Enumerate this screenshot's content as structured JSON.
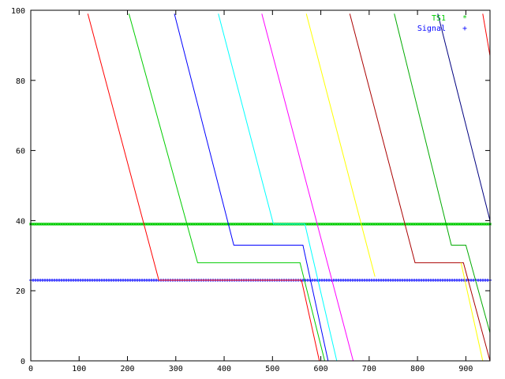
{
  "chart_data": {
    "type": "line",
    "title": "",
    "xlabel": "",
    "ylabel": "",
    "xlim": [
      0,
      950
    ],
    "ylim": [
      0,
      100
    ],
    "grid": false,
    "legend_position": "top-right",
    "x_ticks": [
      0,
      100,
      200,
      300,
      400,
      500,
      600,
      700,
      800,
      900
    ],
    "y_ticks": [
      0,
      20,
      40,
      60,
      80,
      100
    ],
    "x_tick_labels": [
      "0",
      "100",
      "200",
      "300",
      "400",
      "500",
      "600",
      "700",
      "800",
      "900"
    ],
    "y_tick_labels": [
      "0",
      "20",
      "40",
      "60",
      "80",
      "100"
    ],
    "legend": [
      {
        "label": "TS1",
        "marker": "*",
        "color": "#00cc00"
      },
      {
        "label": "Signal",
        "marker": "+",
        "color": "#0000ff"
      }
    ],
    "series": [
      {
        "name": "TS1",
        "style": "points",
        "marker": "*",
        "color": "#00cc00",
        "x": [
          0,
          950
        ],
        "y": [
          39,
          39
        ]
      },
      {
        "name": "Signal",
        "style": "points",
        "marker": "+",
        "color": "#0000ff",
        "x": [
          0,
          950
        ],
        "y": [
          23,
          23
        ]
      }
    ],
    "traces": [
      {
        "color": "#ff0000",
        "points": [
          [
            118,
            99
          ],
          [
            265,
            23
          ],
          [
            560,
            23
          ],
          [
            597,
            0
          ]
        ]
      },
      {
        "color": "#00cc00",
        "points": [
          [
            203,
            99
          ],
          [
            345,
            28
          ],
          [
            557,
            28
          ],
          [
            608,
            0
          ]
        ]
      },
      {
        "color": "#0000ff",
        "points": [
          [
            297,
            99
          ],
          [
            420,
            33
          ],
          [
            563,
            33
          ],
          [
            615,
            0
          ]
        ]
      },
      {
        "color": "#00ffff",
        "points": [
          [
            388,
            99
          ],
          [
            502,
            39
          ],
          [
            567,
            39
          ],
          [
            633,
            0
          ]
        ]
      },
      {
        "color": "#ff00ff",
        "points": [
          [
            478,
            99
          ],
          [
            667,
            0
          ]
        ]
      },
      {
        "color": "#ffff00",
        "points": [
          [
            570,
            99
          ],
          [
            712,
            24
          ]
        ]
      },
      {
        "color": "#aa0000",
        "points": [
          [
            660,
            99
          ],
          [
            795,
            28
          ],
          [
            895,
            28
          ],
          [
            950,
            0
          ]
        ]
      },
      {
        "color": "#00aa00",
        "points": [
          [
            752,
            99
          ],
          [
            870,
            33
          ],
          [
            900,
            33
          ],
          [
            950,
            8
          ]
        ]
      },
      {
        "color": "#000080",
        "points": [
          [
            842,
            99
          ],
          [
            950,
            40
          ]
        ]
      },
      {
        "color": "#ffff00",
        "points": [
          [
            890,
            28
          ],
          [
            935,
            0
          ]
        ]
      },
      {
        "color": "#ff0000",
        "points": [
          [
            935,
            99
          ],
          [
            950,
            87
          ]
        ]
      }
    ]
  }
}
